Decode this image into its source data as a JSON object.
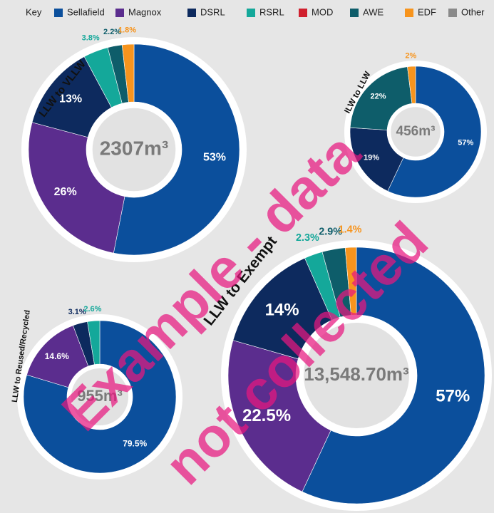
{
  "legend": {
    "title": "Key",
    "items": [
      {
        "name": "Sellafield",
        "color": "#0b4f9c"
      },
      {
        "name": "Magnox",
        "color": "#5b2d8e"
      },
      {
        "name": "DSRL",
        "color": "#0d2a5e"
      },
      {
        "name": "RSRL",
        "color": "#14a89a"
      },
      {
        "name": "MOD",
        "color": "#d0202e"
      },
      {
        "name": "AWE",
        "color": "#0e5d6a"
      },
      {
        "name": "EDF",
        "color": "#f7941d"
      },
      {
        "name": "Other",
        "color": "#8a8a8a"
      }
    ]
  },
  "chart_data": [
    {
      "type": "donut",
      "title": "LLW to VLLW",
      "total": "2307m³",
      "categories": [
        "Sellafield",
        "Magnox",
        "DSRL",
        "RSRL",
        "AWE",
        "EDF"
      ],
      "values": [
        53,
        26,
        13,
        3.8,
        2.2,
        1.8
      ],
      "value_labels": [
        "53%",
        "26%",
        "13%",
        "3.8%",
        "2.2%",
        "1.8%"
      ],
      "colors": [
        "#0b4f9c",
        "#5b2d8e",
        "#0d2a5e",
        "#14a89a",
        "#0e5d6a",
        "#f7941d"
      ]
    },
    {
      "type": "donut",
      "title": "ILW to LLW",
      "total": "456m³",
      "categories": [
        "Sellafield",
        "DSRL",
        "AWE",
        "EDF"
      ],
      "values": [
        57,
        19,
        22,
        2
      ],
      "value_labels": [
        "57%",
        "19%",
        "22%",
        "2%"
      ],
      "colors": [
        "#0b4f9c",
        "#0d2a5e",
        "#0e5d6a",
        "#f7941d"
      ]
    },
    {
      "type": "donut",
      "title": "LLW to Reused/Recycled",
      "total": "955m³",
      "categories": [
        "Sellafield",
        "Magnox",
        "DSRL",
        "RSRL"
      ],
      "values": [
        79.5,
        14.6,
        3.1,
        2.6
      ],
      "value_labels": [
        "79.5%",
        "14.6%",
        "3.1%",
        "2.6%"
      ],
      "colors": [
        "#0b4f9c",
        "#5b2d8e",
        "#0d2a5e",
        "#14a89a"
      ]
    },
    {
      "type": "donut",
      "title": "LLW to Exempt",
      "total": "13,548.70m³",
      "categories": [
        "Sellafield",
        "Magnox",
        "DSRL",
        "RSRL",
        "AWE",
        "EDF"
      ],
      "values": [
        57,
        22.5,
        14,
        2.3,
        2.9,
        1.4
      ],
      "value_labels": [
        "57%",
        "22.5%",
        "14%",
        "2.3%",
        "2.9%",
        "1.4%"
      ],
      "colors": [
        "#0b4f9c",
        "#5b2d8e",
        "#0d2a5e",
        "#14a89a",
        "#0e5d6a",
        "#f7941d"
      ]
    }
  ],
  "watermark": [
    "Example - data",
    "not collected"
  ]
}
